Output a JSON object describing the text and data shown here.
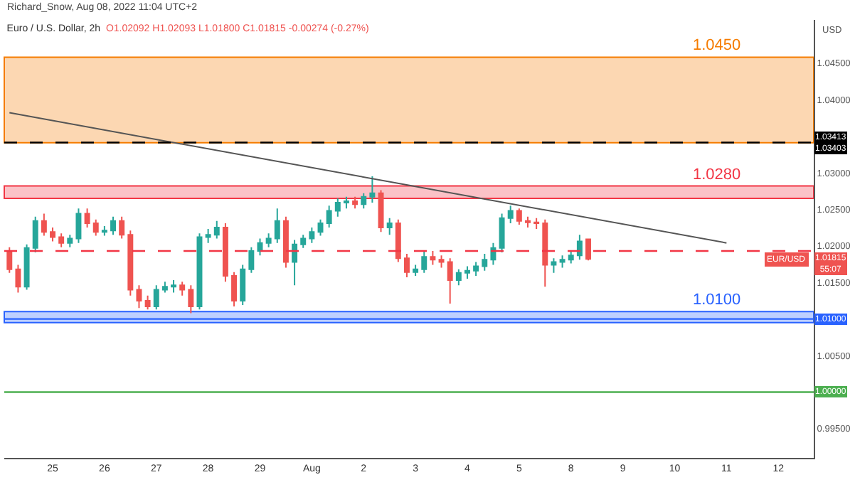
{
  "chart_data": {
    "type": "candlestick",
    "title": "Euro / U.S. Dollar, 2h",
    "subtitle": "O1.02092 H1.02093 L1.01800 C1.01815 -0.00274 (-0.27%)",
    "ylabel": "USD",
    "categories": [
      null,
      null,
      null,
      null,
      null,
      "25",
      null,
      null,
      null,
      null,
      null,
      "26",
      null,
      null,
      null,
      null,
      null,
      "27",
      null,
      null,
      null,
      null,
      null,
      "28",
      null,
      null,
      null,
      null,
      null,
      "29",
      null,
      null,
      null,
      null,
      null,
      "Aug",
      null,
      null,
      null,
      null,
      null,
      "2",
      null,
      null,
      null,
      null,
      null,
      "3",
      null,
      null,
      null,
      null,
      null,
      "4",
      null,
      null,
      null,
      null,
      null,
      "5",
      null,
      null,
      null,
      null,
      null,
      "8",
      null,
      null,
      null,
      null,
      null,
      "9",
      null,
      null,
      null,
      null,
      null,
      "10",
      null,
      null,
      null,
      null,
      null,
      "11",
      null,
      null,
      null,
      null,
      null,
      "12",
      null,
      null,
      null,
      null
    ],
    "series": [
      {
        "name": "EUR/USD",
        "ohlc": [
          [
            1.0193,
            1.0198,
            1.0163,
            1.0168
          ],
          [
            1.0168,
            1.0174,
            1.0136,
            1.0144
          ],
          [
            1.0144,
            1.0202,
            1.014,
            1.0197
          ],
          [
            1.0197,
            1.024,
            1.0191,
            1.0234
          ],
          [
            1.0234,
            1.0244,
            1.0214,
            1.0219
          ],
          [
            1.0219,
            1.0225,
            1.0206,
            1.0212
          ],
          [
            1.0212,
            1.0217,
            1.0198,
            1.0204
          ],
          [
            1.0204,
            1.0215,
            1.0198,
            1.021
          ],
          [
            1.021,
            1.0251,
            1.0204,
            1.0244
          ],
          [
            1.0244,
            1.0251,
            1.0225,
            1.0231
          ],
          [
            1.0231,
            1.0236,
            1.0214,
            1.0219
          ],
          [
            1.0219,
            1.0227,
            1.0214,
            1.0221
          ],
          [
            1.0221,
            1.024,
            1.0215,
            1.0234
          ],
          [
            1.0234,
            1.024,
            1.021,
            1.0215
          ],
          [
            1.0215,
            1.0221,
            1.0132,
            1.014
          ],
          [
            1.014,
            1.0146,
            1.0115,
            1.0125
          ],
          [
            1.0125,
            1.0132,
            1.0113,
            1.0117
          ],
          [
            1.0117,
            1.0146,
            1.0113,
            1.014
          ],
          [
            1.014,
            1.0151,
            1.0136,
            1.0144
          ],
          [
            1.0144,
            1.0153,
            1.0136,
            1.0146
          ],
          [
            1.0146,
            1.0151,
            1.0132,
            1.014
          ],
          [
            1.014,
            1.0146,
            1.0108,
            1.0117
          ],
          [
            1.0117,
            1.0217,
            1.0113,
            1.0212
          ],
          [
            1.0212,
            1.0223,
            1.0204,
            1.0215
          ],
          [
            1.0215,
            1.0234,
            1.021,
            1.0225
          ],
          [
            1.0225,
            1.0231,
            1.0151,
            1.0159
          ],
          [
            1.0159,
            1.0164,
            1.0117,
            1.0125
          ],
          [
            1.0125,
            1.0174,
            1.0119,
            1.0168
          ],
          [
            1.0168,
            1.0198,
            1.0163,
            1.0193
          ],
          [
            1.0193,
            1.021,
            1.0187,
            1.0204
          ],
          [
            1.0204,
            1.0217,
            1.0198,
            1.021
          ],
          [
            1.021,
            1.0251,
            1.0204,
            1.0234
          ],
          [
            1.0234,
            1.024,
            1.017,
            1.0178
          ],
          [
            1.0178,
            1.0208,
            1.0146,
            1.0202
          ],
          [
            1.0202,
            1.0215,
            1.0197,
            1.021
          ],
          [
            1.021,
            1.0225,
            1.0204,
            1.0219
          ],
          [
            1.0219,
            1.0236,
            1.0214,
            1.0231
          ],
          [
            1.0231,
            1.0255,
            1.0225,
            1.0248
          ],
          [
            1.0248,
            1.0265,
            1.024,
            1.0259
          ],
          [
            1.0259,
            1.0267,
            1.0251,
            1.0261
          ],
          [
            1.0261,
            1.0267,
            1.0251,
            1.0257
          ],
          [
            1.0257,
            1.0272,
            1.0251,
            1.0267
          ],
          [
            1.0267,
            1.0295,
            1.0259,
            1.0272
          ],
          [
            1.0272,
            1.0276,
            1.0219,
            1.0225
          ],
          [
            1.0225,
            1.0238,
            1.0215,
            1.0231
          ],
          [
            1.0231,
            1.0236,
            1.0178,
            1.0183
          ],
          [
            1.0183,
            1.0189,
            1.0157,
            1.0164
          ],
          [
            1.0164,
            1.0174,
            1.0159,
            1.0168
          ],
          [
            1.0168,
            1.0193,
            1.0163,
            1.0185
          ],
          [
            1.0185,
            1.0193,
            1.0174,
            1.0181
          ],
          [
            1.0181,
            1.0187,
            1.017,
            1.0178
          ],
          [
            1.0178,
            1.0183,
            1.0121,
            1.0153
          ],
          [
            1.0153,
            1.0168,
            1.0146,
            1.0163
          ],
          [
            1.0163,
            1.0172,
            1.0155,
            1.0166
          ],
          [
            1.0166,
            1.0178,
            1.0159,
            1.0172
          ],
          [
            1.0172,
            1.0189,
            1.0166,
            1.0181
          ],
          [
            1.0181,
            1.0204,
            1.0174,
            1.0197
          ],
          [
            1.0197,
            1.0244,
            1.0191,
            1.0238
          ],
          [
            1.0238,
            1.0255,
            1.0231,
            1.0248
          ],
          [
            1.0248,
            1.0251,
            1.0229,
            1.0234
          ],
          [
            1.0234,
            1.024,
            1.0225,
            1.0232
          ],
          [
            1.0232,
            1.0238,
            1.0223,
            1.0231
          ],
          [
            1.0231,
            1.0236,
            1.0144,
            1.0174
          ],
          [
            1.0174,
            1.0183,
            1.0163,
            1.0178
          ],
          [
            1.0178,
            1.0187,
            1.017,
            1.0181
          ],
          [
            1.0181,
            1.0193,
            1.0176,
            1.0187
          ],
          [
            1.0187,
            1.0215,
            1.0181,
            1.0206
          ],
          [
            1.0209,
            1.0209,
            1.018,
            1.0182
          ],
          null,
          null,
          null,
          null,
          null,
          null,
          null,
          null,
          null,
          null,
          null,
          null,
          null,
          null,
          null,
          null,
          null,
          null,
          null,
          null,
          null,
          null,
          null,
          null,
          null,
          null
        ],
        "colors": [
          "#ef5350",
          "#ef5350",
          "#26a69a",
          "#26a69a",
          "#ef5350",
          "#ef5350",
          "#ef5350",
          "#26a69a",
          "#26a69a",
          "#ef5350",
          "#ef5350",
          "#26a69a",
          "#26a69a",
          "#ef5350",
          "#ef5350",
          "#ef5350",
          "#ef5350",
          "#26a69a",
          "#26a69a",
          "#26a69a",
          "#ef5350",
          "#ef5350",
          "#26a69a",
          "#26a69a",
          "#26a69a",
          "#ef5350",
          "#ef5350",
          "#26a69a",
          "#26a69a",
          "#26a69a",
          "#26a69a",
          "#26a69a",
          "#ef5350",
          "#26a69a",
          "#26a69a",
          "#26a69a",
          "#26a69a",
          "#26a69a",
          "#26a69a",
          "#26a69a",
          "#ef5350",
          "#26a69a",
          "#26a69a",
          "#ef5350",
          "#26a69a",
          "#ef5350",
          "#ef5350",
          "#26a69a",
          "#26a69a",
          "#ef5350",
          "#ef5350",
          "#ef5350",
          "#26a69a",
          "#26a69a",
          "#26a69a",
          "#26a69a",
          "#26a69a",
          "#26a69a",
          "#26a69a",
          "#ef5350",
          "#ef5350",
          "#ef5350",
          "#ef5350",
          "#26a69a",
          "#26a69a",
          "#26a69a",
          "#26a69a",
          "#ef5350",
          null,
          null,
          null,
          null,
          null,
          null,
          null,
          null,
          null,
          null,
          null,
          null,
          null,
          null,
          null,
          null,
          null,
          null,
          null,
          null,
          null,
          null,
          null,
          null,
          null,
          null
        ],
        "value_labels": [
          null,
          null,
          null,
          null,
          null,
          null,
          null,
          null,
          null,
          null,
          null,
          null,
          null,
          null,
          null,
          null,
          null,
          null,
          null,
          null,
          null,
          null,
          null,
          null,
          null,
          null,
          null,
          null,
          null,
          null,
          null,
          null,
          null,
          null,
          null,
          null,
          null,
          null,
          null,
          null,
          null,
          null,
          null,
          null,
          null,
          null,
          null,
          null,
          null,
          null,
          null,
          null,
          null,
          null,
          null,
          null,
          null,
          null,
          null,
          null,
          null,
          null,
          null,
          null,
          null,
          null,
          null,
          "1.01815\n55:07",
          null,
          null,
          null,
          null,
          null,
          null,
          null,
          null,
          null,
          null,
          null,
          null,
          null,
          null,
          null,
          null,
          null,
          null,
          null,
          null,
          null,
          null,
          null,
          null,
          null,
          null
        ]
      },
      {
        "type": "line",
        "values": [
          1.0382,
          null,
          null,
          null,
          null,
          null,
          null,
          null,
          null,
          null,
          null,
          null,
          null,
          null,
          null,
          null,
          null,
          null,
          null,
          null,
          null,
          null,
          null,
          null,
          null,
          null,
          null,
          null,
          null,
          null,
          null,
          null,
          null,
          null,
          null,
          null,
          null,
          null,
          null,
          null,
          null,
          null,
          null,
          null,
          null,
          null,
          null,
          null,
          null,
          null,
          null,
          null,
          null,
          null,
          null,
          null,
          null,
          null,
          null,
          null,
          null,
          null,
          null,
          null,
          null,
          null,
          null,
          null,
          null,
          null,
          null,
          null,
          null,
          null,
          null,
          null,
          null,
          null,
          null,
          null,
          null,
          null,
          null,
          1.0204,
          null,
          null,
          null,
          null,
          null,
          null,
          null,
          null,
          null,
          null
        ],
        "color": "#555555"
      }
    ],
    "ylim": [
      0.991,
      1.0509
    ],
    "yticks": [
      {
        "value": 0.995,
        "label": "0.99500"
      },
      {
        "value": 1.0,
        "label": null
      },
      {
        "value": 1.005,
        "label": "1.00500"
      },
      {
        "value": 1.01,
        "label": null
      },
      {
        "value": 1.015,
        "label": "1.01500"
      },
      {
        "value": 1.02,
        "label": "1.02000"
      },
      {
        "value": 1.025,
        "label": "1.02500"
      },
      {
        "value": 1.03,
        "label": "1.03000"
      },
      {
        "value": 1.04,
        "label": "1.04000"
      },
      {
        "value": 1.045,
        "label": "1.04500"
      }
    ],
    "bands": [
      {
        "axis": "y",
        "from": 1.0341,
        "to": 1.0458,
        "label": "1.0450",
        "color": "#f57c00"
      },
      {
        "axis": "y",
        "from": 1.0265,
        "to": 1.0282,
        "label": "1.0280",
        "color": "#f23645"
      },
      {
        "axis": "y",
        "from": 1.0095,
        "to": 1.011,
        "label": "1.0100",
        "color": "#2962ff"
      }
    ],
    "ref_lines": [
      {
        "axis": "y",
        "value": 1.03413,
        "label": [
          "1.03413",
          "1.03403"
        ],
        "color": "#000000",
        "line_style": "dashed"
      },
      {
        "axis": "y",
        "value": 1.0193,
        "color": "#f23645",
        "line_style": "dashed"
      },
      {
        "axis": "y",
        "value": 1.01,
        "label": "1.01000",
        "color": "#2962ff",
        "line_style": "solid"
      },
      {
        "axis": "y",
        "value": 1.0,
        "label": "1.00000",
        "color": "#4caf50",
        "line_style": "solid"
      }
    ],
    "annotations": [
      "Richard_Snow, Aug 08, 2022 11:04 UTC+2"
    ],
    "grid": false,
    "legend": false
  }
}
